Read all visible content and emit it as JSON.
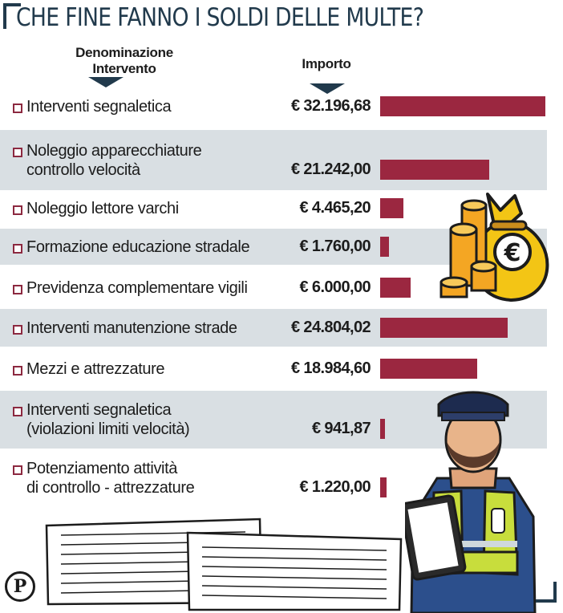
{
  "title": "CHE FINE FANNO I SOLDI DELLE MULTE?",
  "header": {
    "name_col": [
      "Denominazione",
      "Intervento"
    ],
    "amount_col": "Importo"
  },
  "logo_letter": "P",
  "colors": {
    "bar": "#9b2740",
    "accent": "#213a4c",
    "shade": "#d9dfe3"
  },
  "icons": [
    "money-bag-icon",
    "coins-icon",
    "police-officer-icon",
    "documents-icon"
  ],
  "chart_data": {
    "type": "bar",
    "orientation": "horizontal",
    "categories": [
      [
        "Interventi segnaletica"
      ],
      [
        "Noleggio apparecchiature",
        "controllo velocità"
      ],
      [
        "Noleggio lettore varchi"
      ],
      [
        "Formazione educazione stradale"
      ],
      [
        "Previdenza complementare vigili"
      ],
      [
        "Interventi manutenzione strade"
      ],
      [
        "Mezzi e attrezzature"
      ],
      [
        "Interventi segnaletica",
        "(violazioni limiti velocità)"
      ],
      [
        "Potenziamento attività",
        "di controllo - attrezzature"
      ]
    ],
    "values": [
      32196.68,
      21242.0,
      4465.2,
      1760.0,
      6000.0,
      24804.02,
      18984.6,
      941.87,
      1220.0
    ],
    "value_labels": [
      "€ 32.196,68",
      "€ 21.242,00",
      "€ 4.465,20",
      "€ 1.760,00",
      "€ 6.000,00",
      "€ 24.804,02",
      "€ 18.984,60",
      "€ 941,87",
      "€ 1.220,00"
    ],
    "xlim": [
      0,
      32196.68
    ],
    "unit": "€"
  }
}
